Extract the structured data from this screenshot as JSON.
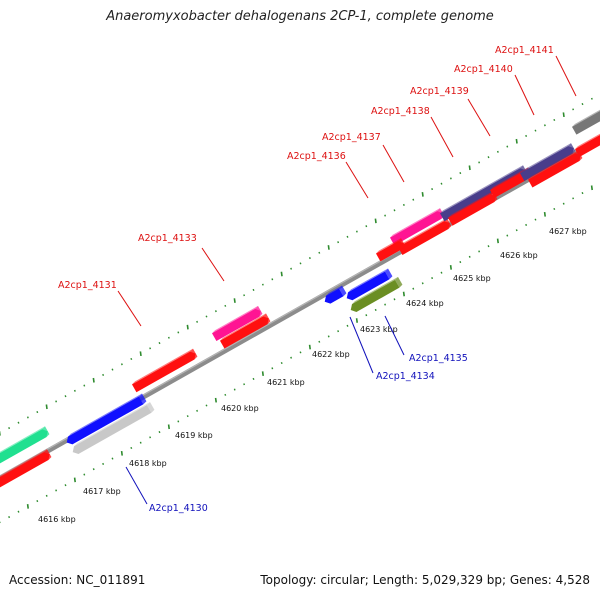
{
  "title": "Anaeromyxobacter dehalogenans 2CP-1, complete genome",
  "footer": {
    "accession": "Accession: NC_011891",
    "summary": "Topology: circular; Length: 5,029,329 bp; Genes: 4,528"
  },
  "colors": {
    "backbone": "#8c8c8c",
    "tick": "#2e8b2e",
    "label_forward": "#dd1111",
    "label_reverse": "#1111bb"
  },
  "scale_labels": [
    "4616 kbp",
    "4617 kbp",
    "4618 kbp",
    "4619 kbp",
    "4620 kbp",
    "4621 kbp",
    "4622 kbp",
    "4623 kbp",
    "4624 kbp",
    "4625 kbp",
    "4626 kbp",
    "4627 kbp"
  ],
  "genes": [
    {
      "label": "A2cp1_4131",
      "strand": "forward",
      "color": "#ff1010"
    },
    {
      "label": "A2cp1_4133",
      "strand": "forward",
      "color": "#ff1493"
    },
    {
      "label": "A2cp1_4136",
      "strand": "forward",
      "color": "#ff1493"
    },
    {
      "label": "A2cp1_4137",
      "strand": "forward",
      "color": "#ff1010"
    },
    {
      "label": "A2cp1_4138",
      "strand": "forward",
      "color": "#483d8b"
    },
    {
      "label": "A2cp1_4139",
      "strand": "forward",
      "color": "#ff1010"
    },
    {
      "label": "A2cp1_4140",
      "strand": "forward",
      "color": "#483d8b"
    },
    {
      "label": "A2cp1_4141",
      "strand": "forward",
      "color": "#ff1010"
    },
    {
      "label": "A2cp1_4130",
      "strand": "reverse",
      "color": "#1010ff"
    },
    {
      "label": "A2cp1_4134",
      "strand": "reverse",
      "color": "#1010ff"
    },
    {
      "label": "A2cp1_4135",
      "strand": "reverse",
      "color": "#6b8e23"
    }
  ]
}
